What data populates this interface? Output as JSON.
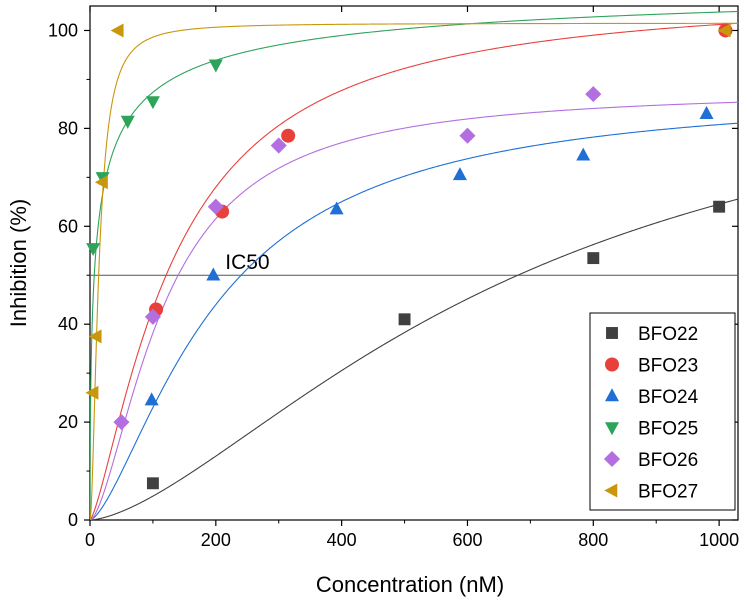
{
  "chart_data": {
    "type": "scatter",
    "title": "",
    "xlabel": "Concentration (nM)",
    "ylabel": "Inhibition (%)",
    "xlim": [
      0,
      1030
    ],
    "ylim": [
      0,
      105
    ],
    "xticks": [
      0,
      200,
      400,
      600,
      800,
      1000
    ],
    "yticks": [
      0,
      20,
      40,
      60,
      80,
      100
    ],
    "grid": false,
    "legend_position": "bottom-right",
    "reference_line": {
      "y": 50,
      "label": "IC50"
    },
    "series": [
      {
        "name": "BFO22",
        "marker": "square",
        "color": "#404040",
        "x": [
          100,
          500,
          800,
          1000
        ],
        "y": [
          7.5,
          41,
          53.5,
          64
        ],
        "fit": {
          "model": "hill",
          "max": 100,
          "ic50": 680,
          "n": 1.55
        }
      },
      {
        "name": "BFO23",
        "marker": "circle",
        "color": "#e8413c",
        "x": [
          105,
          210,
          315,
          1010
        ],
        "y": [
          43,
          63,
          78.5,
          100
        ],
        "fit": {
          "model": "hill",
          "max": 108,
          "ic50": 135,
          "n": 1.35
        }
      },
      {
        "name": "BFO24",
        "marker": "triangle-up",
        "color": "#1f6fd6",
        "x": [
          98,
          196,
          392,
          588,
          784,
          980
        ],
        "y": [
          24.5,
          50,
          63.5,
          70.5,
          74.5,
          83
        ],
        "fit": {
          "model": "hill",
          "max": 88,
          "ic50": 200,
          "n": 1.5
        }
      },
      {
        "name": "BFO25",
        "marker": "triangle-down",
        "color": "#2ea35a",
        "x": [
          5,
          20,
          60,
          100,
          200
        ],
        "y": [
          55.5,
          70,
          81.5,
          85.5,
          93
        ],
        "fit": {
          "model": "hill",
          "max": 112,
          "ic50": 10,
          "n": 0.55
        }
      },
      {
        "name": "BFO26",
        "marker": "diamond",
        "color": "#b36fe0",
        "x": [
          50,
          100,
          200,
          300,
          600,
          800
        ],
        "y": [
          20,
          41.5,
          64,
          76.5,
          78.5,
          87
        ],
        "fit": {
          "model": "hill",
          "max": 88,
          "ic50": 118,
          "n": 1.6
        }
      },
      {
        "name": "BFO27",
        "marker": "triangle-left",
        "color": "#c9960c",
        "x": [
          5,
          10,
          20,
          45,
          1010
        ],
        "y": [
          26,
          37.5,
          69,
          100,
          100
        ],
        "fit": {
          "model": "hill",
          "max": 101.5,
          "ic50": 14,
          "n": 1.8
        }
      }
    ]
  }
}
